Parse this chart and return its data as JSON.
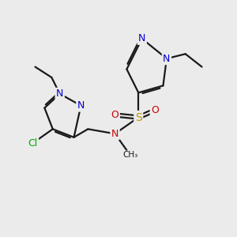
{
  "bg_color": "#ebebeb",
  "bond_color": "#1a1a1a",
  "bond_width": 1.6,
  "figsize": [
    3.0,
    3.0
  ],
  "dpi": 100,
  "colors": {
    "N": "#0000cc",
    "S": "#b8960a",
    "O": "#cc0000",
    "Cl": "#00aa00",
    "N_sul": "#cc0000",
    "C": "#1a1a1a"
  }
}
